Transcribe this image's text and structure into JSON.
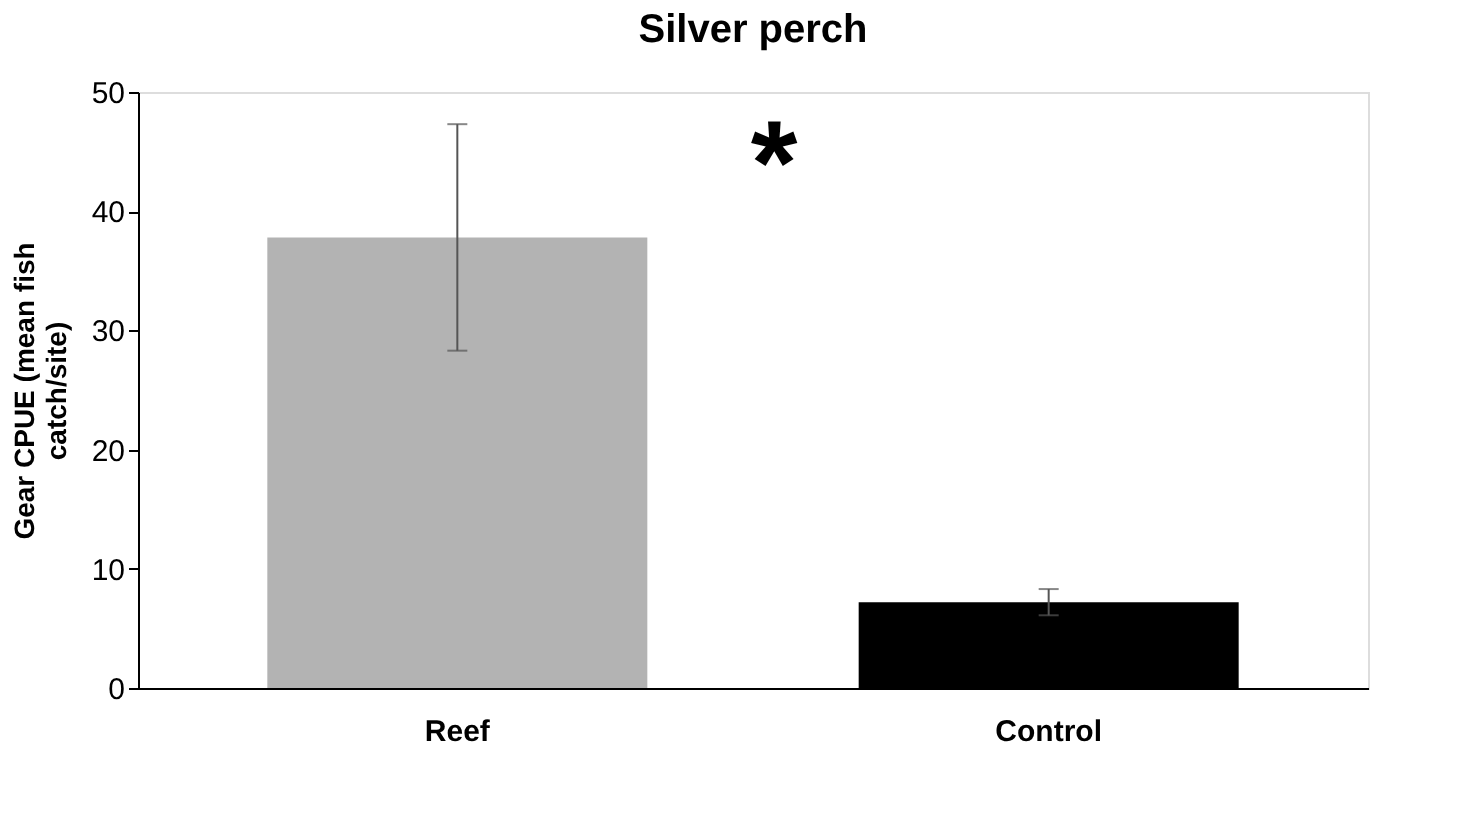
{
  "chart_data": {
    "type": "bar",
    "title": "Silver perch",
    "ylabel": "Gear CPUE (mean fish catch/site)",
    "categories": [
      "Reef",
      "Control"
    ],
    "values": [
      37.8,
      7.2
    ],
    "colors": [
      "#b3b3b3",
      "#000000"
    ],
    "errors": [
      9.5,
      1.1
    ],
    "ylim": [
      0,
      50
    ],
    "yticks": [
      0,
      10,
      20,
      30,
      40,
      50
    ],
    "grid": false,
    "legend": false,
    "annotations": [
      "*"
    ]
  }
}
